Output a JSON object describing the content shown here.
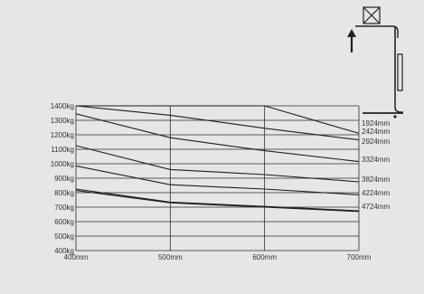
{
  "colors": {
    "background": "#e6e6e9",
    "grid": "#2a2a2a",
    "line": "#1e1e1e",
    "text": "#333333"
  },
  "icons": {
    "load": "box-x-icon",
    "direction": "arrow-up-icon",
    "truck": "fork-mast-icon"
  },
  "chart_data": {
    "type": "line",
    "title": "",
    "xlabel": "",
    "ylabel": "",
    "x": [
      400,
      500,
      600,
      700
    ],
    "xticks": [
      "400mm",
      "500mm",
      "600mm",
      "700mm"
    ],
    "yticks": [
      "400kg",
      "500kg",
      "600kg",
      "700kg",
      "800kg",
      "900kg",
      "1000kg",
      "1100kg",
      "1200kg",
      "1300kg",
      "1400kg"
    ],
    "xlim": [
      400,
      700
    ],
    "ylim": [
      400,
      1400
    ],
    "grid": true,
    "legend": "right",
    "series": [
      {
        "name": "1924mm",
        "values": [
          1400,
          1400,
          1400,
          1210
        ]
      },
      {
        "name": "2424mm",
        "values": [
          1400,
          1335,
          1245,
          1165
        ]
      },
      {
        "name": "2924mm",
        "values": [
          1345,
          1180,
          1090,
          1015
        ]
      },
      {
        "name": "3324mm",
        "values": [
          1125,
          960,
          925,
          875
        ]
      },
      {
        "name": "3824mm",
        "values": [
          985,
          855,
          825,
          785
        ]
      },
      {
        "name": "4224mm",
        "values": [
          825,
          735,
          705,
          675
        ]
      },
      {
        "name": "4724mm",
        "values": [
          815,
          730,
          700,
          670
        ]
      }
    ]
  }
}
